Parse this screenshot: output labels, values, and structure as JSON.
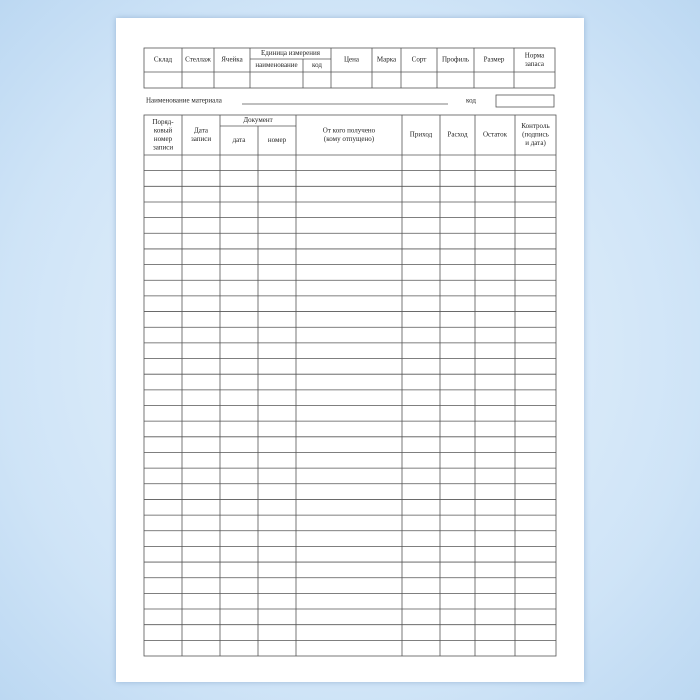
{
  "top_table": {
    "headers": [
      [
        "Склад"
      ],
      [
        "Стеллаж"
      ],
      [
        "Ячейка"
      ],
      [
        "Цена"
      ],
      [
        "Марка"
      ],
      [
        "Сорт"
      ],
      [
        "Профиль"
      ],
      [
        "Размер"
      ],
      [
        "Норма",
        "запаса"
      ]
    ],
    "unit_group": "Единица измерения",
    "unit_subheaders": [
      "наименование",
      "код"
    ]
  },
  "material_line": {
    "label": "Наименование материала",
    "code_label": "код"
  },
  "main_table": {
    "headers": [
      [
        "Поряд-",
        "ковый",
        "номер",
        "записи"
      ],
      [
        "Дата",
        "записи"
      ],
      [
        "От кого получено",
        "(кому отпущено)"
      ],
      [
        "Приход"
      ],
      [
        "Расход"
      ],
      [
        "Остаток"
      ],
      [
        "Контроль",
        "(подпись",
        "и дата)"
      ]
    ],
    "document_group": "Документ",
    "document_subheaders": [
      "дата",
      "номер"
    ]
  }
}
